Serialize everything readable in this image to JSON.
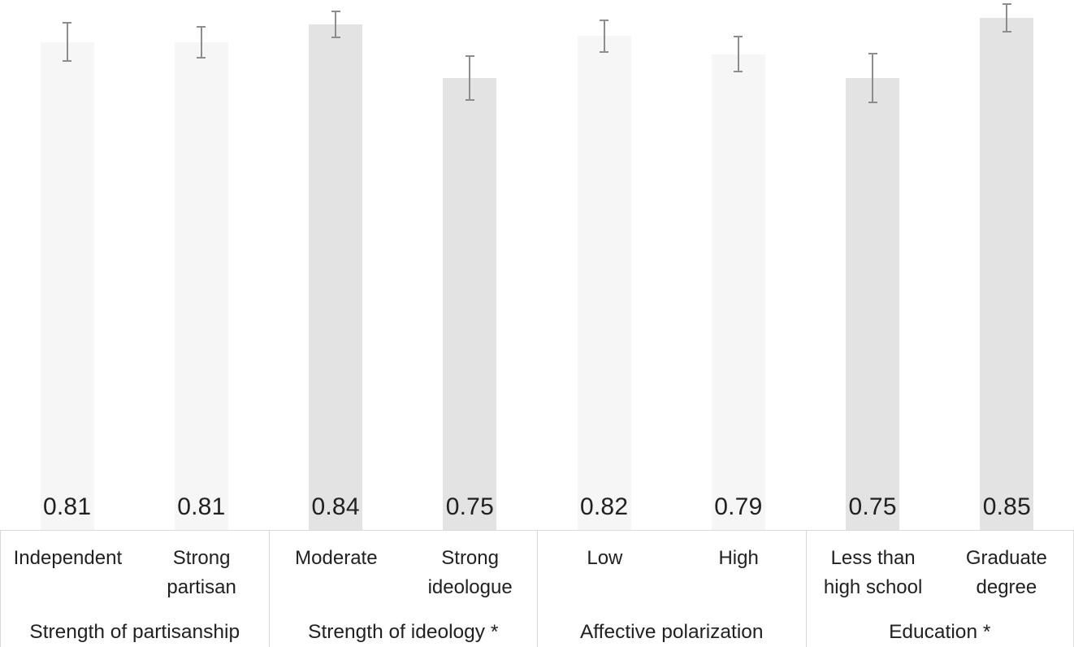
{
  "chart_data": {
    "type": "bar",
    "title": "",
    "xlabel": "",
    "ylabel": "",
    "ylim": [
      0,
      0.88
    ],
    "grid": false,
    "legend": false,
    "background_color": "#ffffff",
    "text_color": "#212121",
    "axis_line_color": "#d9d9d9",
    "error_bar_color": "#8d8d8d",
    "bar_colors": {
      "default": "#f6f6f6",
      "significant": "#e3e3e3"
    },
    "groups": [
      {
        "label": "Strength of partisanship",
        "significant": false,
        "bars": [
          {
            "label": "Independent",
            "value": 0.81,
            "value_label": "0.81",
            "error": 0.033
          },
          {
            "label": "Strong\npartisan",
            "value": 0.81,
            "value_label": "0.81",
            "error": 0.027
          }
        ]
      },
      {
        "label": "Strength of ideology *",
        "significant": true,
        "bars": [
          {
            "label": "Moderate",
            "value": 0.84,
            "value_label": "0.84",
            "error": 0.023
          },
          {
            "label": "Strong\nideologue",
            "value": 0.75,
            "value_label": "0.75",
            "error": 0.038
          }
        ]
      },
      {
        "label": "Affective polarization",
        "significant": false,
        "bars": [
          {
            "label": "Low",
            "value": 0.82,
            "value_label": "0.82",
            "error": 0.028
          },
          {
            "label": "High",
            "value": 0.79,
            "value_label": "0.79",
            "error": 0.03
          }
        ]
      },
      {
        "label": "Education *",
        "significant": true,
        "bars": [
          {
            "label": "Less than\nhigh school",
            "value": 0.75,
            "value_label": "0.75",
            "error": 0.042
          },
          {
            "label": "Graduate\ndegree",
            "value": 0.85,
            "value_label": "0.85",
            "error": 0.024
          }
        ]
      }
    ]
  }
}
